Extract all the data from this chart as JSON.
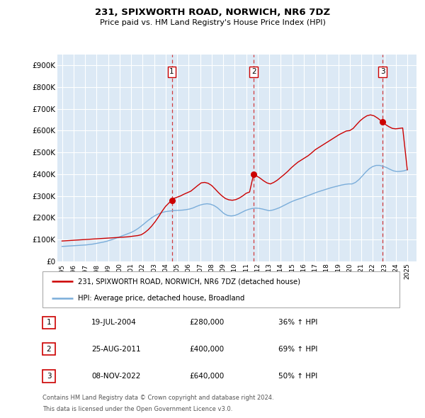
{
  "title1": "231, SPIXWORTH ROAD, NORWICH, NR6 7DZ",
  "title2": "Price paid vs. HM Land Registry's House Price Index (HPI)",
  "ylabel_ticks": [
    "£0",
    "£100K",
    "£200K",
    "£300K",
    "£400K",
    "£500K",
    "£600K",
    "£700K",
    "£800K",
    "£900K"
  ],
  "ytick_values": [
    0,
    100000,
    200000,
    300000,
    400000,
    500000,
    600000,
    700000,
    800000,
    900000
  ],
  "ylim": [
    0,
    950000
  ],
  "xlim_start": 1994.6,
  "xlim_end": 2025.8,
  "background_color": "#dce9f5",
  "grid_color": "white",
  "sale_color": "#cc0000",
  "hpi_color": "#7aadda",
  "sale_label": "231, SPIXWORTH ROAD, NORWICH, NR6 7DZ (detached house)",
  "hpi_label": "HPI: Average price, detached house, Broadland",
  "transactions": [
    {
      "num": 1,
      "date": "19-JUL-2004",
      "price": 280000,
      "pct": "36%",
      "x": 2004.54
    },
    {
      "num": 2,
      "date": "25-AUG-2011",
      "price": 400000,
      "pct": "69%",
      "x": 2011.65
    },
    {
      "num": 3,
      "date": "08-NOV-2022",
      "price": 640000,
      "pct": "50%",
      "x": 2022.85
    }
  ],
  "footnote1": "Contains HM Land Registry data © Crown copyright and database right 2024.",
  "footnote2": "This data is licensed under the Open Government Licence v3.0.",
  "sale_x": [
    1995.0,
    1995.3,
    1995.6,
    1995.9,
    1996.2,
    1996.5,
    1996.8,
    1997.1,
    1997.4,
    1997.7,
    1998.0,
    1998.3,
    1998.6,
    1998.9,
    1999.2,
    1999.5,
    1999.8,
    2000.1,
    2000.4,
    2000.7,
    2001.0,
    2001.3,
    2001.6,
    2001.9,
    2002.2,
    2002.5,
    2002.8,
    2003.1,
    2003.4,
    2003.7,
    2004.0,
    2004.3,
    2004.54,
    2004.7,
    2005.0,
    2005.3,
    2005.6,
    2005.9,
    2006.2,
    2006.5,
    2006.8,
    2007.1,
    2007.4,
    2007.7,
    2008.0,
    2008.3,
    2008.6,
    2008.9,
    2009.2,
    2009.5,
    2009.8,
    2010.1,
    2010.4,
    2010.7,
    2011.0,
    2011.3,
    2011.65,
    2011.9,
    2012.2,
    2012.5,
    2012.8,
    2013.1,
    2013.4,
    2013.7,
    2014.0,
    2014.3,
    2014.6,
    2014.9,
    2015.2,
    2015.5,
    2015.8,
    2016.1,
    2016.4,
    2016.7,
    2017.0,
    2017.3,
    2017.6,
    2017.9,
    2018.2,
    2018.5,
    2018.8,
    2019.1,
    2019.4,
    2019.7,
    2020.0,
    2020.3,
    2020.6,
    2020.9,
    2021.2,
    2021.5,
    2021.8,
    2022.1,
    2022.4,
    2022.85,
    2023.1,
    2023.4,
    2023.7,
    2024.0,
    2024.3,
    2024.6,
    2025.0
  ],
  "sale_y": [
    93000,
    94000,
    95000,
    96000,
    97000,
    98000,
    99000,
    100000,
    101000,
    102000,
    103000,
    104000,
    105000,
    106000,
    107000,
    108000,
    109000,
    110000,
    111000,
    112000,
    114000,
    116000,
    118000,
    122000,
    132000,
    145000,
    162000,
    182000,
    205000,
    230000,
    252000,
    268000,
    280000,
    288000,
    294000,
    300000,
    308000,
    315000,
    322000,
    335000,
    348000,
    360000,
    362000,
    358000,
    348000,
    332000,
    315000,
    300000,
    288000,
    282000,
    280000,
    283000,
    290000,
    300000,
    312000,
    318000,
    400000,
    392000,
    382000,
    370000,
    360000,
    355000,
    362000,
    372000,
    385000,
    398000,
    412000,
    428000,
    442000,
    455000,
    465000,
    475000,
    485000,
    498000,
    512000,
    522000,
    532000,
    542000,
    552000,
    562000,
    572000,
    582000,
    590000,
    598000,
    600000,
    610000,
    628000,
    645000,
    658000,
    668000,
    672000,
    668000,
    658000,
    640000,
    628000,
    618000,
    610000,
    608000,
    610000,
    612000,
    420000
  ],
  "hpi_x": [
    1995.0,
    1995.3,
    1995.6,
    1995.9,
    1996.2,
    1996.5,
    1996.8,
    1997.1,
    1997.4,
    1997.7,
    1998.0,
    1998.3,
    1998.6,
    1998.9,
    1999.2,
    1999.5,
    1999.8,
    2000.1,
    2000.4,
    2000.7,
    2001.0,
    2001.3,
    2001.6,
    2001.9,
    2002.2,
    2002.5,
    2002.8,
    2003.1,
    2003.4,
    2003.7,
    2004.0,
    2004.3,
    2004.6,
    2004.9,
    2005.2,
    2005.5,
    2005.8,
    2006.1,
    2006.4,
    2006.7,
    2007.0,
    2007.3,
    2007.6,
    2007.9,
    2008.2,
    2008.5,
    2008.8,
    2009.1,
    2009.4,
    2009.7,
    2010.0,
    2010.3,
    2010.6,
    2010.9,
    2011.2,
    2011.5,
    2011.8,
    2012.1,
    2012.4,
    2012.7,
    2013.0,
    2013.3,
    2013.6,
    2013.9,
    2014.2,
    2014.5,
    2014.8,
    2015.1,
    2015.4,
    2015.7,
    2016.0,
    2016.3,
    2016.6,
    2016.9,
    2017.2,
    2017.5,
    2017.8,
    2018.1,
    2018.4,
    2018.7,
    2019.0,
    2019.3,
    2019.6,
    2019.9,
    2020.2,
    2020.5,
    2020.8,
    2021.1,
    2021.4,
    2021.7,
    2022.0,
    2022.3,
    2022.6,
    2022.9,
    2023.2,
    2023.5,
    2023.8,
    2024.1,
    2024.4,
    2024.7,
    2025.0
  ],
  "hpi_y": [
    68000,
    69000,
    70000,
    71000,
    72000,
    73000,
    74000,
    75000,
    77000,
    79000,
    82000,
    85000,
    88000,
    92000,
    97000,
    102000,
    108000,
    114000,
    120000,
    126000,
    132000,
    140000,
    150000,
    162000,
    175000,
    188000,
    200000,
    210000,
    218000,
    224000,
    228000,
    230000,
    232000,
    233000,
    234000,
    235000,
    237000,
    240000,
    245000,
    252000,
    258000,
    262000,
    264000,
    262000,
    256000,
    246000,
    232000,
    218000,
    210000,
    208000,
    210000,
    216000,
    224000,
    232000,
    238000,
    242000,
    244000,
    243000,
    240000,
    236000,
    232000,
    235000,
    240000,
    246000,
    254000,
    262000,
    270000,
    277000,
    283000,
    288000,
    294000,
    300000,
    306000,
    312000,
    318000,
    323000,
    328000,
    333000,
    338000,
    342000,
    346000,
    350000,
    353000,
    355000,
    355000,
    362000,
    375000,
    392000,
    410000,
    425000,
    435000,
    440000,
    440000,
    436000,
    430000,
    422000,
    415000,
    412000,
    413000,
    415000,
    420000
  ]
}
